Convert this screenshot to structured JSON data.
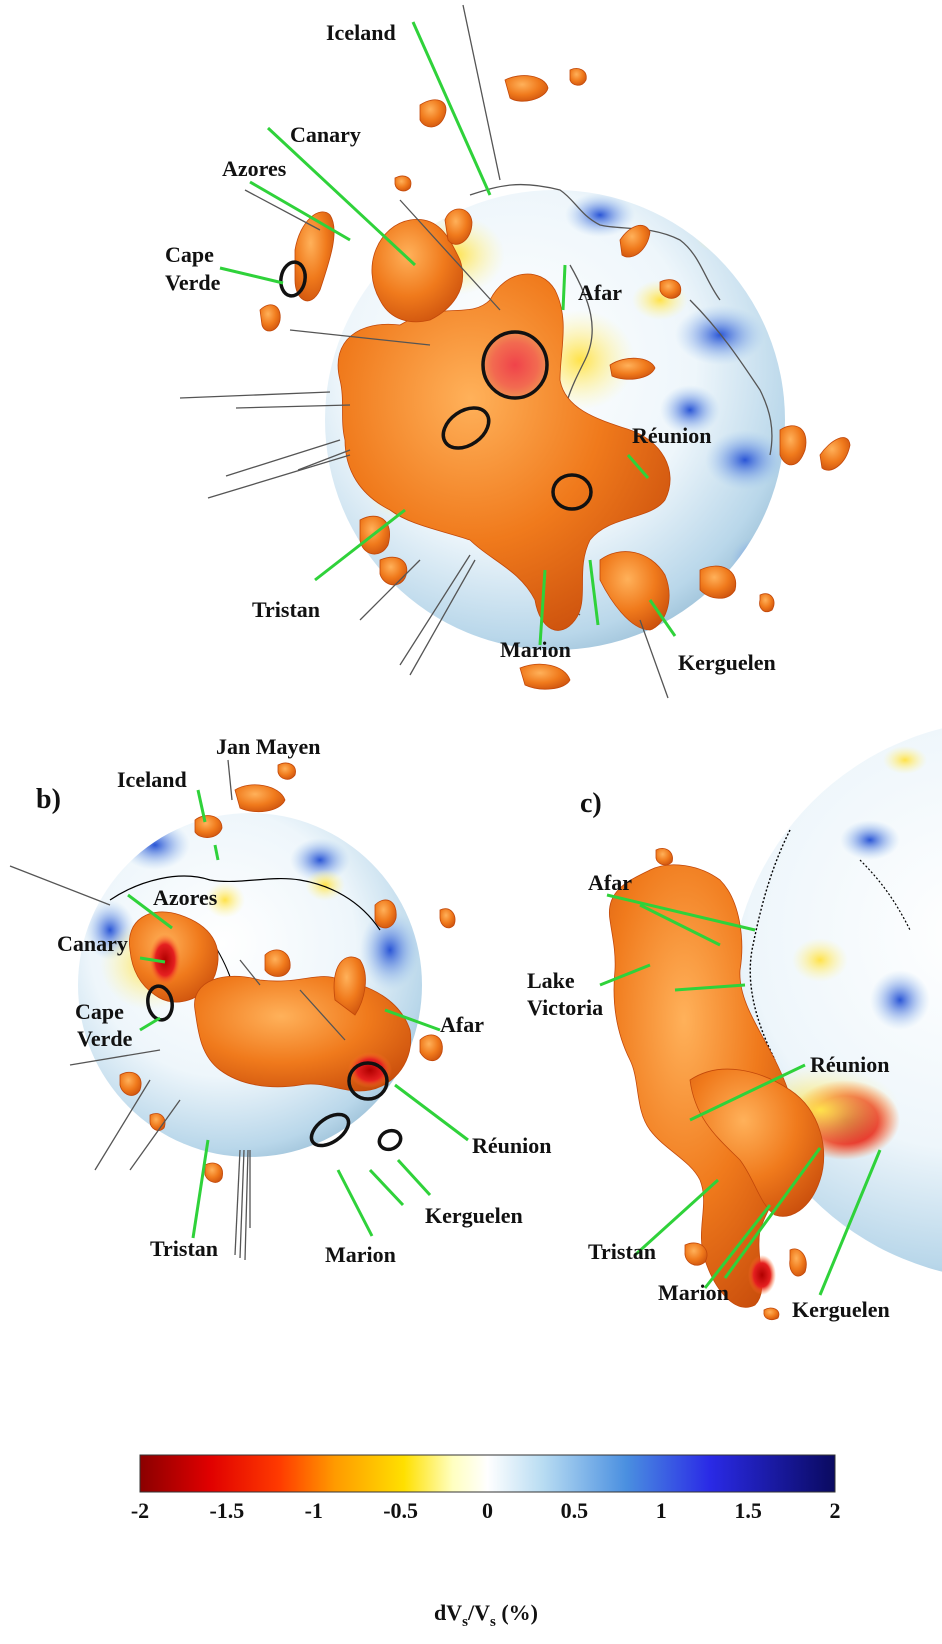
{
  "panels": {
    "b": {
      "letter": "b)"
    },
    "c": {
      "letter": "c)"
    }
  },
  "labels": {
    "a": {
      "iceland": "Iceland",
      "canary": "Canary",
      "azores": "Azores",
      "cape_verde_1": "Cape",
      "cape_verde_2": "Verde",
      "afar": "Afar",
      "reunion": "Réunion",
      "tristan": "Tristan",
      "marion": "Marion",
      "kerguelen": "Kerguelen"
    },
    "b": {
      "jan_mayen": "Jan Mayen",
      "iceland": "Iceland",
      "azores": "Azores",
      "canary": "Canary",
      "cape_verde_1": "Cape",
      "cape_verde_2": "Verde",
      "afar": "Afar",
      "reunion": "Réunion",
      "kerguelen": "Kerguelen",
      "tristan": "Tristan",
      "marion": "Marion"
    },
    "c": {
      "afar": "Afar",
      "lake_victoria_1": "Lake",
      "lake_victoria_2": "Victoria",
      "reunion": "Réunion",
      "tristan": "Tristan",
      "marion": "Marion",
      "kerguelen": "Kerguelen"
    }
  },
  "colorbar": {
    "ticks": [
      "-2",
      "-1.5",
      "-1",
      "-0.5",
      "0",
      "0.5",
      "1",
      "1.5",
      "2"
    ],
    "min": -2,
    "max": 2,
    "title_main": "dV",
    "title_sub1": "s",
    "title_mid": "/V",
    "title_sub2": "s",
    "title_unit": " (%)",
    "colors": [
      "#8b0000",
      "#e00000",
      "#ff4000",
      "#ff9a00",
      "#ffe000",
      "#ffffd0",
      "#ffffff",
      "#b8dcf2",
      "#4a8fe0",
      "#2020e0",
      "#0a0a60"
    ]
  }
}
